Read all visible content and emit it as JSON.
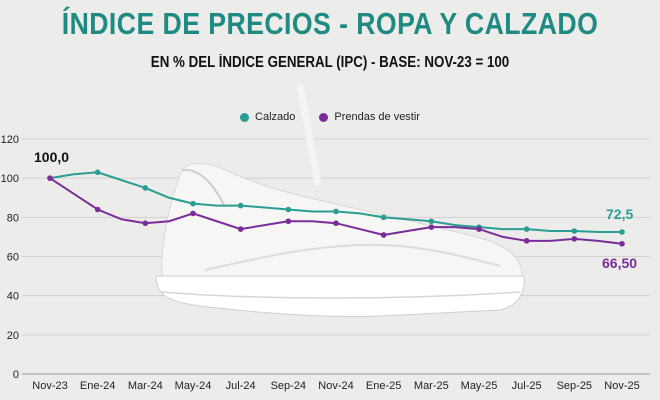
{
  "colors": {
    "calzado": "#2a9d94",
    "prendas": "#7a2d9a",
    "title": "#1f8a82",
    "grid": "#d2d2d2"
  },
  "header": {
    "title": "ÍNDICE DE PRECIOS - ROPA Y CALZADO",
    "subtitle": "EN % DEL ÍNDICE GENERAL (IPC) - BASE: NOV-23 = 100"
  },
  "chart_data": {
    "type": "line",
    "categories": [
      "Nov-23",
      "Dic-23",
      "Ene-24",
      "Feb-24",
      "Mar-24",
      "Abr-24",
      "May-24",
      "Jun-24",
      "Jul-24",
      "Ago-24",
      "Sep-24",
      "Oct-24",
      "Nov-24",
      "Dic-24",
      "Ene-25",
      "Feb-25",
      "Mar-25",
      "Abr-25",
      "May-25",
      "Jun-25",
      "Jul-25",
      "Ago-25",
      "Sep-25",
      "Oct-25",
      "Nov-25"
    ],
    "tick_labels": [
      "Nov-23",
      "Ene-24",
      "Mar-24",
      "May-24",
      "Jul-24",
      "Sep-24",
      "Nov-24",
      "Ene-25",
      "Mar-25",
      "May-25",
      "Jul-25",
      "Sep-25",
      "Nov-25"
    ],
    "series": [
      {
        "name": "Calzado",
        "values": [
          100,
          102,
          103,
          99,
          95,
          90,
          87,
          86,
          86,
          85,
          84,
          83,
          83,
          82,
          80,
          79,
          78,
          76,
          75,
          74,
          74,
          73,
          73,
          72.5,
          72.5
        ]
      },
      {
        "name": "Prendas de vestir",
        "values": [
          100,
          92,
          84,
          79,
          77,
          78,
          82,
          78,
          74,
          76,
          78,
          78,
          77,
          74,
          71,
          73,
          75,
          75,
          74,
          70,
          68,
          68,
          69,
          68,
          66.5
        ]
      }
    ],
    "ylim": [
      0,
      120
    ],
    "yticks": [
      0,
      20,
      40,
      60,
      80,
      100,
      120
    ],
    "annotations": {
      "start": "100,0",
      "calzado_end": "72,5",
      "prendas_end": "66,50"
    },
    "grid": true,
    "legend": "top-center"
  }
}
